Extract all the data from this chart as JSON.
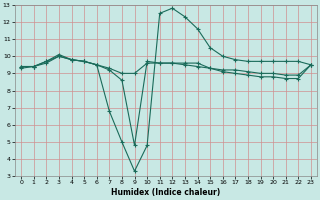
{
  "title": "",
  "xlabel": "Humidex (Indice chaleur)",
  "ylabel": "",
  "bg_color": "#c8e8e4",
  "grid_color": "#d09090",
  "line_color": "#1a6b5a",
  "xlim": [
    -0.5,
    23.5
  ],
  "ylim": [
    3,
    13
  ],
  "xticks": [
    0,
    1,
    2,
    3,
    4,
    5,
    6,
    7,
    8,
    9,
    10,
    11,
    12,
    13,
    14,
    15,
    16,
    17,
    18,
    19,
    20,
    21,
    22,
    23
  ],
  "yticks": [
    3,
    4,
    5,
    6,
    7,
    8,
    9,
    10,
    11,
    12,
    13
  ],
  "line1": {
    "x": [
      0,
      1,
      2,
      3,
      4,
      5,
      6,
      7,
      8,
      9,
      10,
      11,
      12,
      13,
      14,
      15,
      16,
      17,
      18,
      19,
      20,
      21,
      22,
      23
    ],
    "y": [
      9.4,
      9.4,
      9.7,
      10.1,
      9.8,
      9.7,
      9.5,
      9.2,
      8.6,
      4.8,
      9.7,
      9.6,
      9.6,
      9.6,
      9.6,
      9.3,
      9.1,
      9.0,
      8.9,
      8.8,
      8.8,
      8.7,
      8.7,
      9.5
    ]
  },
  "line2": {
    "x": [
      0,
      1,
      2,
      3,
      4,
      5,
      6,
      7,
      8,
      9,
      10,
      11,
      12,
      13,
      14,
      15,
      16,
      17,
      18,
      19,
      20,
      21,
      22,
      23
    ],
    "y": [
      9.3,
      9.4,
      9.6,
      10.0,
      9.8,
      9.7,
      9.5,
      6.8,
      5.0,
      3.3,
      4.8,
      12.5,
      12.8,
      12.3,
      11.6,
      10.5,
      10.0,
      9.8,
      9.7,
      9.7,
      9.7,
      9.7,
      9.7,
      9.5
    ]
  },
  "line3": {
    "x": [
      0,
      1,
      2,
      3,
      4,
      5,
      6,
      7,
      8,
      9,
      10,
      11,
      12,
      13,
      14,
      15,
      16,
      17,
      18,
      19,
      20,
      21,
      22,
      23
    ],
    "y": [
      9.4,
      9.4,
      9.7,
      10.0,
      9.8,
      9.7,
      9.5,
      9.3,
      9.0,
      9.0,
      9.6,
      9.6,
      9.6,
      9.5,
      9.4,
      9.3,
      9.2,
      9.2,
      9.1,
      9.0,
      9.0,
      8.9,
      8.9,
      9.5
    ]
  }
}
